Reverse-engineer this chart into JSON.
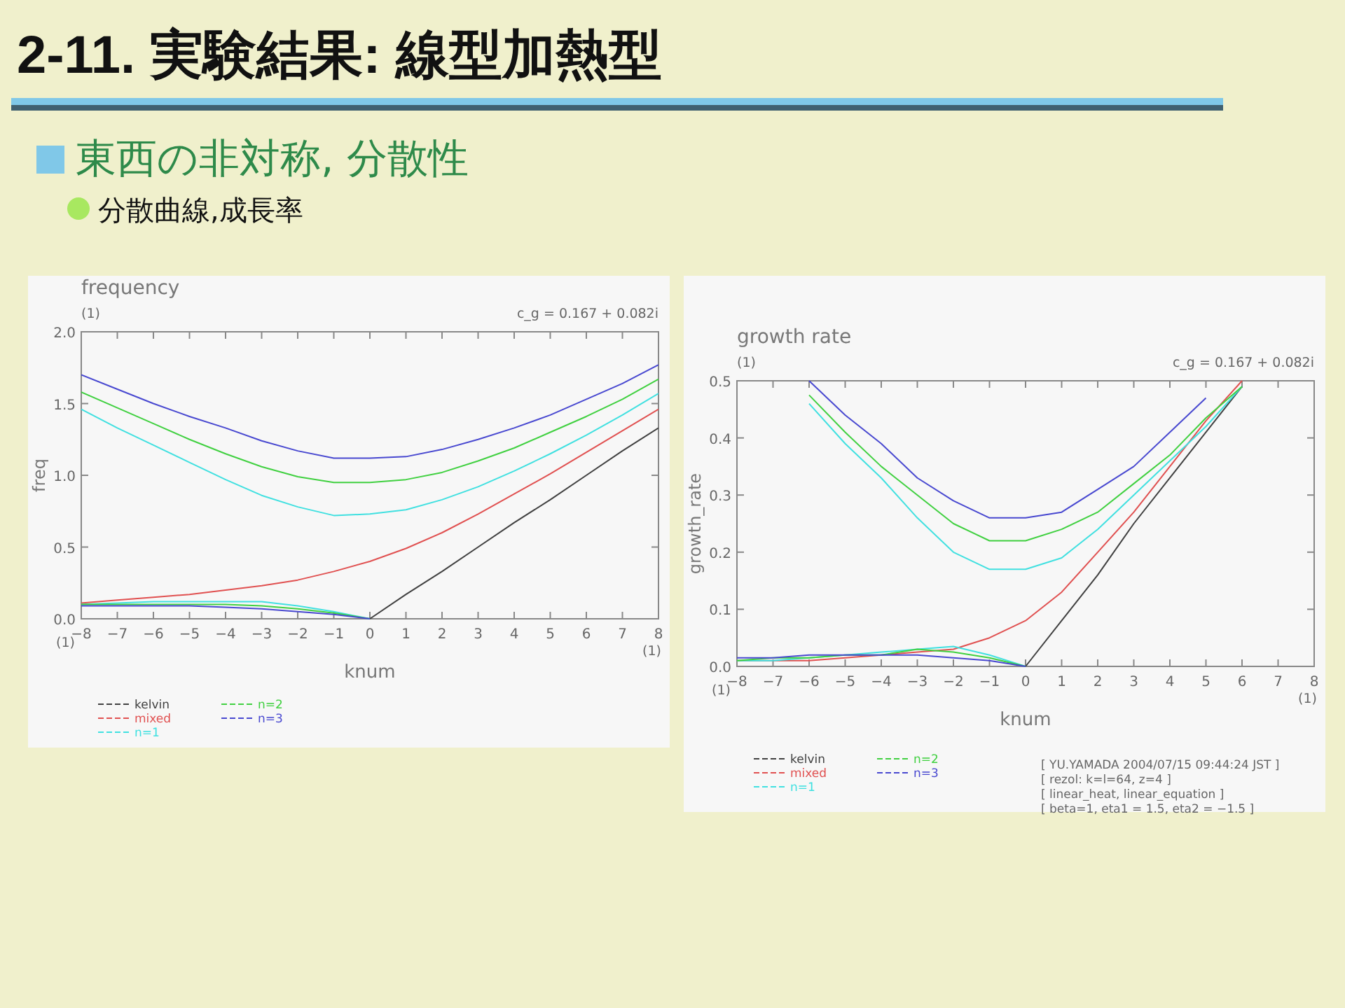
{
  "chart_data": [
    {
      "type": "other",
      "title": "2-11. 実験結果: 線型加熱型",
      "annotations": [
        "東西の非対称, 分散性",
        "分散曲線,成長率"
      ]
    },
    {
      "type": "line",
      "title": "frequency",
      "xlabel": "knum",
      "ylabel": "freq",
      "x": [
        -8,
        -7,
        -6,
        -5,
        -4,
        -3,
        -2,
        -1,
        0,
        1,
        2,
        3,
        4,
        5,
        6,
        7,
        8
      ],
      "xlim": [
        -8,
        8
      ],
      "xticks": [
        -8,
        -7,
        -6,
        -5,
        -4,
        -3,
        -2,
        -1,
        0,
        1,
        2,
        3,
        4,
        5,
        6,
        7,
        8
      ],
      "ylim": [
        0,
        2
      ],
      "yticks": [
        {
          "value": 0,
          "label": "0.0"
        },
        0.5,
        {
          "value": 1,
          "label": "1.0"
        },
        1.5,
        {
          "value": 2,
          "label": "2.0"
        }
      ],
      "grid": false,
      "legend": "bottom",
      "marker": "none",
      "line_style": "solid",
      "annotations": [
        "(1)",
        "c_g =  0.167 + 0.082i",
        "(1)",
        "(1)"
      ],
      "series": [
        {
          "name": "kelvin",
          "color": "#404040",
          "values": [
            null,
            null,
            null,
            null,
            null,
            null,
            null,
            null,
            0,
            0.17,
            0.33,
            0.5,
            0.67,
            0.83,
            1.0,
            1.17,
            1.33
          ]
        },
        {
          "name": "mixed",
          "color": "#e05050",
          "values": [
            0.11,
            0.13,
            0.15,
            0.17,
            0.2,
            0.23,
            0.27,
            0.33,
            0.4,
            0.49,
            0.6,
            0.73,
            0.87,
            1.01,
            1.16,
            1.31,
            1.46
          ]
        },
        {
          "name": "n=1",
          "color": "#40e0e0",
          "values": [
            1.46,
            1.33,
            1.21,
            1.09,
            0.97,
            0.86,
            0.78,
            0.72,
            0.73,
            0.76,
            0.83,
            0.92,
            1.03,
            1.15,
            1.28,
            1.42,
            1.57
          ]
        },
        {
          "name": "n=2",
          "color": "#40d040",
          "values": [
            1.58,
            1.47,
            1.36,
            1.25,
            1.15,
            1.06,
            0.99,
            0.95,
            0.95,
            0.97,
            1.02,
            1.1,
            1.19,
            1.3,
            1.41,
            1.53,
            1.67
          ]
        },
        {
          "name": "n=3",
          "color": "#4848d0",
          "values": [
            1.7,
            1.6,
            1.5,
            1.41,
            1.33,
            1.24,
            1.17,
            1.12,
            1.12,
            1.13,
            1.18,
            1.25,
            1.33,
            1.42,
            1.53,
            1.64,
            1.77
          ]
        },
        {
          "color": "#40e0e0",
          "values": [
            0.1,
            0.11,
            0.12,
            0.12,
            0.12,
            0.12,
            0.09,
            0.05,
            0,
            null,
            null,
            null,
            null,
            null,
            null,
            null,
            null
          ]
        },
        {
          "color": "#40d040",
          "values": [
            0.1,
            0.1,
            0.1,
            0.1,
            0.1,
            0.09,
            0.07,
            0.04,
            0,
            null,
            null,
            null,
            null,
            null,
            null,
            null,
            null
          ]
        },
        {
          "color": "#4848d0",
          "values": [
            0.09,
            0.09,
            0.09,
            0.09,
            0.08,
            0.07,
            0.05,
            0.03,
            0,
            null,
            null,
            null,
            null,
            null,
            null,
            null,
            null
          ]
        }
      ]
    },
    {
      "type": "line",
      "title": "growth rate",
      "xlabel": "knum",
      "ylabel": "growth_rate",
      "x": [
        -8,
        -7,
        -6,
        -5,
        -4,
        -3,
        -2,
        -1,
        0,
        1,
        2,
        3,
        4,
        5,
        6
      ],
      "xlim": [
        -8,
        8
      ],
      "xticks": [
        -8,
        -7,
        -6,
        -5,
        -4,
        -3,
        -2,
        -1,
        0,
        1,
        2,
        3,
        4,
        5,
        6,
        7,
        8
      ],
      "ylim": [
        0,
        0.5
      ],
      "yticks": [
        {
          "value": 0,
          "label": "0.0"
        },
        0.1,
        0.2,
        0.3,
        0.4,
        0.5
      ],
      "grid": false,
      "legend": "bottom",
      "marker": "none",
      "line_style": "solid",
      "annotations": [
        "(1)",
        "c_g =  0.167 + 0.082i",
        "(1)",
        "(1)",
        "[ YU.YAMADA 2004/07/15 09:44:24 JST ]",
        "[ rezol: k=l=64, z=4 ]",
        "[ linear_heat, linear_equation ]",
        "[ beta=1, eta1 = 1.5, eta2 = −1.5 ]"
      ],
      "series": [
        {
          "name": "kelvin",
          "color": "#404040",
          "values": [
            null,
            null,
            null,
            null,
            null,
            null,
            null,
            null,
            0,
            0.08,
            0.16,
            0.25,
            0.33,
            0.41,
            0.49
          ]
        },
        {
          "name": "mixed",
          "color": "#e05050",
          "values": [
            0.01,
            0.01,
            0.01,
            0.015,
            0.02,
            0.025,
            0.03,
            0.05,
            0.08,
            0.13,
            0.2,
            0.27,
            0.35,
            0.43,
            0.5
          ]
        },
        {
          "name": "n=1",
          "color": "#40e0e0",
          "values": [
            null,
            null,
            0.46,
            0.39,
            0.33,
            0.26,
            0.2,
            0.17,
            0.17,
            0.19,
            0.24,
            0.3,
            0.36,
            0.42,
            0.49
          ]
        },
        {
          "name": "n=2",
          "color": "#40d040",
          "values": [
            null,
            null,
            0.475,
            0.41,
            0.35,
            0.3,
            0.25,
            0.22,
            0.22,
            0.24,
            0.27,
            0.32,
            0.37,
            0.435,
            0.49
          ]
        },
        {
          "name": "n=3",
          "color": "#4848d0",
          "values": [
            null,
            null,
            0.5,
            0.44,
            0.39,
            0.33,
            0.29,
            0.26,
            0.26,
            0.27,
            0.31,
            0.35,
            0.41,
            0.47,
            null
          ]
        },
        {
          "color": "#40e0e0",
          "values": [
            0.01,
            0.01,
            0.015,
            0.02,
            0.025,
            0.03,
            0.035,
            0.02,
            0,
            null,
            null,
            null,
            null,
            null,
            null
          ]
        },
        {
          "color": "#40d040",
          "values": [
            0.01,
            0.015,
            0.015,
            0.02,
            0.02,
            0.03,
            0.025,
            0.015,
            0,
            null,
            null,
            null,
            null,
            null,
            null
          ]
        },
        {
          "color": "#4848d0",
          "values": [
            0.015,
            0.015,
            0.02,
            0.02,
            0.02,
            0.02,
            0.015,
            0.01,
            0,
            null,
            null,
            null,
            null,
            null,
            null
          ]
        }
      ]
    }
  ]
}
